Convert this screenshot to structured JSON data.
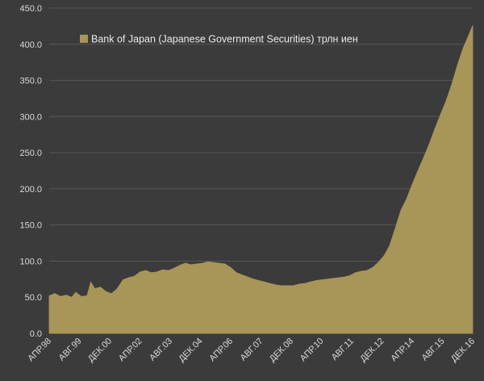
{
  "colors": {
    "background": "#3b3b3b",
    "area_fill": "#a89558",
    "gridline": "#565656",
    "axis_text": "#d9d9d9",
    "legend_text": "#ececec"
  },
  "chart_data": {
    "type": "area",
    "title": "",
    "xlabel": "",
    "ylabel": "",
    "ylim": [
      0,
      450
    ],
    "y_ticks": [
      "0.0",
      "50.0",
      "100.0",
      "150.0",
      "200.0",
      "250.0",
      "300.0",
      "350.0",
      "400.0",
      "450.0"
    ],
    "x_range": [
      "1998-04",
      "2016-12"
    ],
    "x_tick_labels": [
      {
        "date": "1998-04",
        "label": "АПР.98"
      },
      {
        "date": "1999-08",
        "label": "АВГ.99"
      },
      {
        "date": "2000-12",
        "label": "ДЕК.00"
      },
      {
        "date": "2002-04",
        "label": "АПР.02"
      },
      {
        "date": "2003-08",
        "label": "АВГ.03"
      },
      {
        "date": "2004-12",
        "label": "ДЕК.04"
      },
      {
        "date": "2006-04",
        "label": "АПР.06"
      },
      {
        "date": "2007-08",
        "label": "АВГ.07"
      },
      {
        "date": "2008-12",
        "label": "ДЕК.08"
      },
      {
        "date": "2010-04",
        "label": "АПР.10"
      },
      {
        "date": "2011-08",
        "label": "АВГ.11"
      },
      {
        "date": "2012-12",
        "label": "ДЕК.12"
      },
      {
        "date": "2014-04",
        "label": "АПР.14"
      },
      {
        "date": "2015-08",
        "label": "АВГ.15"
      },
      {
        "date": "2016-12",
        "label": "ДЕК.16"
      }
    ],
    "grid": true,
    "legend_position": "top-left",
    "series": [
      {
        "name": "Bank of Japan (Japanese Government Securities) трлн иен",
        "points": [
          [
            "1998-04",
            52
          ],
          [
            "1998-07",
            55
          ],
          [
            "1998-10",
            51
          ],
          [
            "1999-01",
            53
          ],
          [
            "1999-04",
            50
          ],
          [
            "1999-06",
            57
          ],
          [
            "1999-09",
            51
          ],
          [
            "1999-12",
            52
          ],
          [
            "2000-02",
            71
          ],
          [
            "2000-04",
            62
          ],
          [
            "2000-07",
            64
          ],
          [
            "2000-10",
            58
          ],
          [
            "2001-01",
            55
          ],
          [
            "2001-04",
            62
          ],
          [
            "2001-07",
            74
          ],
          [
            "2001-10",
            77
          ],
          [
            "2002-01",
            79
          ],
          [
            "2002-04",
            85
          ],
          [
            "2002-07",
            87
          ],
          [
            "2002-10",
            84
          ],
          [
            "2003-01",
            85
          ],
          [
            "2003-04",
            88
          ],
          [
            "2003-07",
            87
          ],
          [
            "2003-10",
            90
          ],
          [
            "2004-01",
            94
          ],
          [
            "2004-04",
            97
          ],
          [
            "2004-07",
            95
          ],
          [
            "2004-10",
            96
          ],
          [
            "2005-01",
            97
          ],
          [
            "2005-04",
            99
          ],
          [
            "2005-07",
            98
          ],
          [
            "2005-10",
            97
          ],
          [
            "2006-01",
            96
          ],
          [
            "2006-04",
            91
          ],
          [
            "2006-07",
            84
          ],
          [
            "2006-10",
            81
          ],
          [
            "2007-01",
            78
          ],
          [
            "2007-04",
            75
          ],
          [
            "2007-07",
            73
          ],
          [
            "2007-10",
            71
          ],
          [
            "2008-01",
            69
          ],
          [
            "2008-04",
            67
          ],
          [
            "2008-07",
            66
          ],
          [
            "2008-10",
            66
          ],
          [
            "2009-01",
            66
          ],
          [
            "2009-04",
            68
          ],
          [
            "2009-07",
            69
          ],
          [
            "2009-10",
            71
          ],
          [
            "2010-01",
            73
          ],
          [
            "2010-04",
            74
          ],
          [
            "2010-07",
            75
          ],
          [
            "2010-10",
            76
          ],
          [
            "2011-01",
            77
          ],
          [
            "2011-04",
            78
          ],
          [
            "2011-07",
            80
          ],
          [
            "2011-10",
            84
          ],
          [
            "2012-01",
            86
          ],
          [
            "2012-04",
            87
          ],
          [
            "2012-07",
            91
          ],
          [
            "2012-10",
            98
          ],
          [
            "2013-01",
            107
          ],
          [
            "2013-04",
            121
          ],
          [
            "2013-07",
            145
          ],
          [
            "2013-10",
            170
          ],
          [
            "2014-01",
            186
          ],
          [
            "2014-04",
            206
          ],
          [
            "2014-07",
            225
          ],
          [
            "2014-10",
            243
          ],
          [
            "2015-01",
            262
          ],
          [
            "2015-04",
            283
          ],
          [
            "2015-07",
            303
          ],
          [
            "2015-10",
            322
          ],
          [
            "2016-01",
            345
          ],
          [
            "2016-04",
            372
          ],
          [
            "2016-07",
            395
          ],
          [
            "2016-10",
            413
          ],
          [
            "2016-12",
            426
          ]
        ]
      }
    ]
  }
}
